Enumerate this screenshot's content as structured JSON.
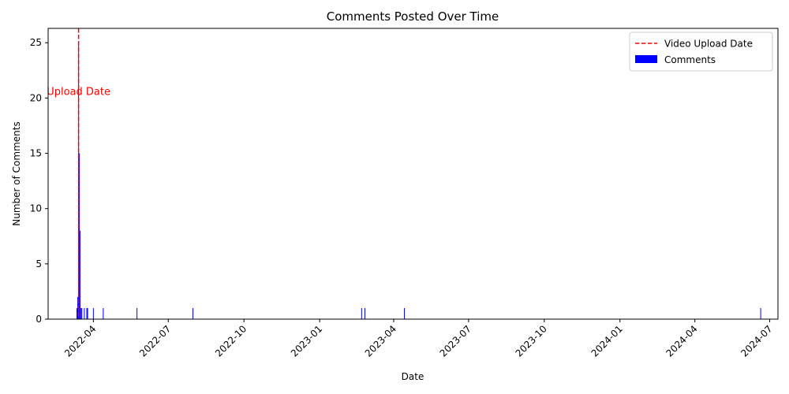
{
  "chart_data": {
    "type": "bar",
    "title": "Comments Posted Over Time",
    "xlabel": "Date",
    "ylabel": "Number of Comments",
    "xlim": [
      "2022-02-05",
      "2024-07-11"
    ],
    "ylim": [
      0,
      26.3
    ],
    "x_ticks": [
      "2022-04",
      "2022-07",
      "2022-10",
      "2023-01",
      "2023-04",
      "2023-07",
      "2023-10",
      "2024-01",
      "2024-04",
      "2024-07"
    ],
    "x_tick_dates": [
      "2022-04-01",
      "2022-07-01",
      "2022-10-01",
      "2023-01-01",
      "2023-04-01",
      "2023-07-01",
      "2023-10-01",
      "2024-01-01",
      "2024-04-01",
      "2024-07-01"
    ],
    "y_ticks": [
      "0",
      "5",
      "10",
      "15",
      "20",
      "25"
    ],
    "y_tick_values": [
      0,
      5,
      10,
      15,
      20,
      25
    ],
    "grid": false,
    "legend_position": "top-right",
    "colors": {
      "bars": "#0000ff",
      "upload_line": "#ff0000"
    },
    "upload_line": {
      "date": "2022-03-14",
      "legend_label": "Video Upload Date",
      "annotation": "Upload Date"
    },
    "series": [
      {
        "name": "Comments",
        "points": [
          {
            "date": "2022-03-12",
            "value": 1
          },
          {
            "date": "2022-03-13",
            "value": 2
          },
          {
            "date": "2022-03-14",
            "value": 25
          },
          {
            "date": "2022-03-15",
            "value": 15
          },
          {
            "date": "2022-03-16",
            "value": 8
          },
          {
            "date": "2022-03-17",
            "value": 1
          },
          {
            "date": "2022-03-18",
            "value": 1
          },
          {
            "date": "2022-03-21",
            "value": 1
          },
          {
            "date": "2022-03-24",
            "value": 1
          },
          {
            "date": "2022-03-25",
            "value": 1
          },
          {
            "date": "2022-04-01",
            "value": 1
          },
          {
            "date": "2022-04-13",
            "value": 1
          },
          {
            "date": "2022-05-24",
            "value": 1
          },
          {
            "date": "2022-07-31",
            "value": 1
          },
          {
            "date": "2023-02-21",
            "value": 1
          },
          {
            "date": "2023-02-25",
            "value": 1
          },
          {
            "date": "2023-04-14",
            "value": 1
          },
          {
            "date": "2024-06-20",
            "value": 1
          }
        ]
      }
    ]
  }
}
